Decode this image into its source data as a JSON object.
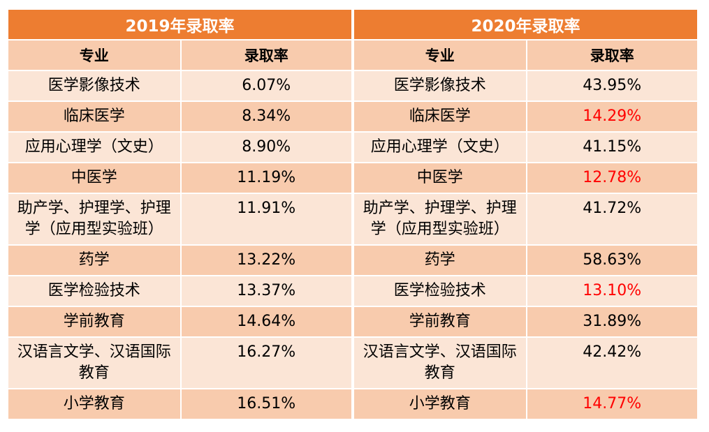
{
  "tables": [
    {
      "title": "2019年录取率",
      "headers": {
        "major": "专业",
        "rate": "录取率"
      },
      "rows": [
        {
          "major": "医学影像技术",
          "rate": "6.07%",
          "highlight": false
        },
        {
          "major": "临床医学",
          "rate": "8.34%",
          "highlight": false
        },
        {
          "major": "应用心理学（文史）",
          "rate": "8.90%",
          "highlight": false
        },
        {
          "major": "中医学",
          "rate": "11.19%",
          "highlight": false
        },
        {
          "major": "助产学、护理学、护理学（应用型实验班）",
          "rate": "11.91%",
          "highlight": false
        },
        {
          "major": "药学",
          "rate": "13.22%",
          "highlight": false
        },
        {
          "major": "医学检验技术",
          "rate": "13.37%",
          "highlight": false
        },
        {
          "major": "学前教育",
          "rate": "14.64%",
          "highlight": false
        },
        {
          "major": "汉语言文学、汉语国际教育",
          "rate": "16.27%",
          "highlight": false
        },
        {
          "major": "小学教育",
          "rate": "16.51%",
          "highlight": false
        }
      ]
    },
    {
      "title": "2020年录取率",
      "headers": {
        "major": "专业",
        "rate": "录取率"
      },
      "rows": [
        {
          "major": "医学影像技术",
          "rate": "43.95%",
          "highlight": false
        },
        {
          "major": "临床医学",
          "rate": "14.29%",
          "highlight": true
        },
        {
          "major": "应用心理学（文史）",
          "rate": "41.15%",
          "highlight": false
        },
        {
          "major": "中医学",
          "rate": "12.78%",
          "highlight": true
        },
        {
          "major": "助产学、护理学、护理学（应用型实验班）",
          "rate": "41.72%",
          "highlight": false
        },
        {
          "major": "药学",
          "rate": "58.63%",
          "highlight": false
        },
        {
          "major": "医学检验技术",
          "rate": "13.10%",
          "highlight": true
        },
        {
          "major": "学前教育",
          "rate": "31.89%",
          "highlight": false
        },
        {
          "major": "汉语言文学、汉语国际教育",
          "rate": "42.42%",
          "highlight": false
        },
        {
          "major": "小学教育",
          "rate": "14.77%",
          "highlight": true
        }
      ]
    }
  ],
  "colors": {
    "banner": "#ed7d31",
    "row_light": "#fbe5d6",
    "row_dark": "#f8cbad",
    "highlight_text": "#ff0000"
  }
}
